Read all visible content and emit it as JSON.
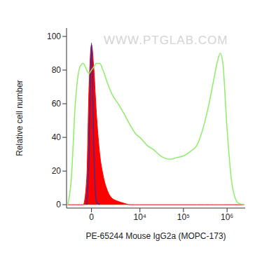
{
  "chart_data": {
    "type": "line",
    "watermark": "WWW.PTGLAB.COM",
    "x_label": "PE-65244 Mouse IgG2a (MOPC-173)",
    "y_label": "Relative cell number",
    "log": "x",
    "x": [
      -2500,
      -2000,
      -1500,
      -1000,
      -700,
      -400,
      -200,
      0,
      200,
      400,
      700,
      1000,
      1500,
      2000,
      3000,
      4000,
      6000,
      8000,
      10000,
      15000,
      20000,
      30000,
      50000,
      70000,
      100000,
      150000,
      200000,
      300000,
      400000,
      500000,
      600000,
      700000,
      800000,
      1000000,
      1300000,
      1800000,
      2500000
    ],
    "series": [
      {
        "type": "area",
        "color": "#ff0000",
        "values": [
          0,
          0,
          0,
          0,
          0,
          15,
          70,
          95,
          80,
          55,
          30,
          18,
          8,
          4,
          2,
          1,
          0,
          0,
          0,
          0,
          0,
          0,
          0,
          0,
          0,
          0,
          0,
          0,
          0,
          0,
          0,
          0,
          0,
          0,
          0,
          0,
          0
        ]
      },
      {
        "type": "line",
        "color": "#3b2e9a",
        "values": [
          null,
          null,
          null,
          null,
          null,
          0,
          30,
          96,
          30,
          2,
          0,
          null,
          null,
          null,
          null,
          null,
          null,
          null,
          null,
          null,
          null,
          null,
          null,
          null,
          null,
          null,
          null,
          null,
          null,
          null,
          null,
          null,
          null,
          null,
          null,
          null,
          null
        ]
      },
      {
        "type": "line",
        "color": "#8eec6a",
        "values": [
          0,
          15,
          60,
          82,
          84,
          80,
          78,
          80,
          82,
          84,
          84,
          80,
          72,
          66,
          60,
          55,
          47,
          42,
          40,
          35,
          33,
          29,
          27,
          28,
          29,
          32,
          35,
          48,
          62,
          75,
          85,
          90,
          84,
          45,
          12,
          1,
          0
        ]
      }
    ],
    "xlim": [
      -2700,
      2600000
    ],
    "xticks": [
      0,
      {
        "value": 10000,
        "label": "10⁴"
      },
      {
        "value": 100000,
        "label": "10⁵"
      },
      {
        "value": 1000000,
        "label": "10⁶"
      }
    ],
    "ylim": [
      -2,
      105
    ],
    "yticks": [
      0,
      20,
      40,
      60,
      80,
      100
    ]
  }
}
